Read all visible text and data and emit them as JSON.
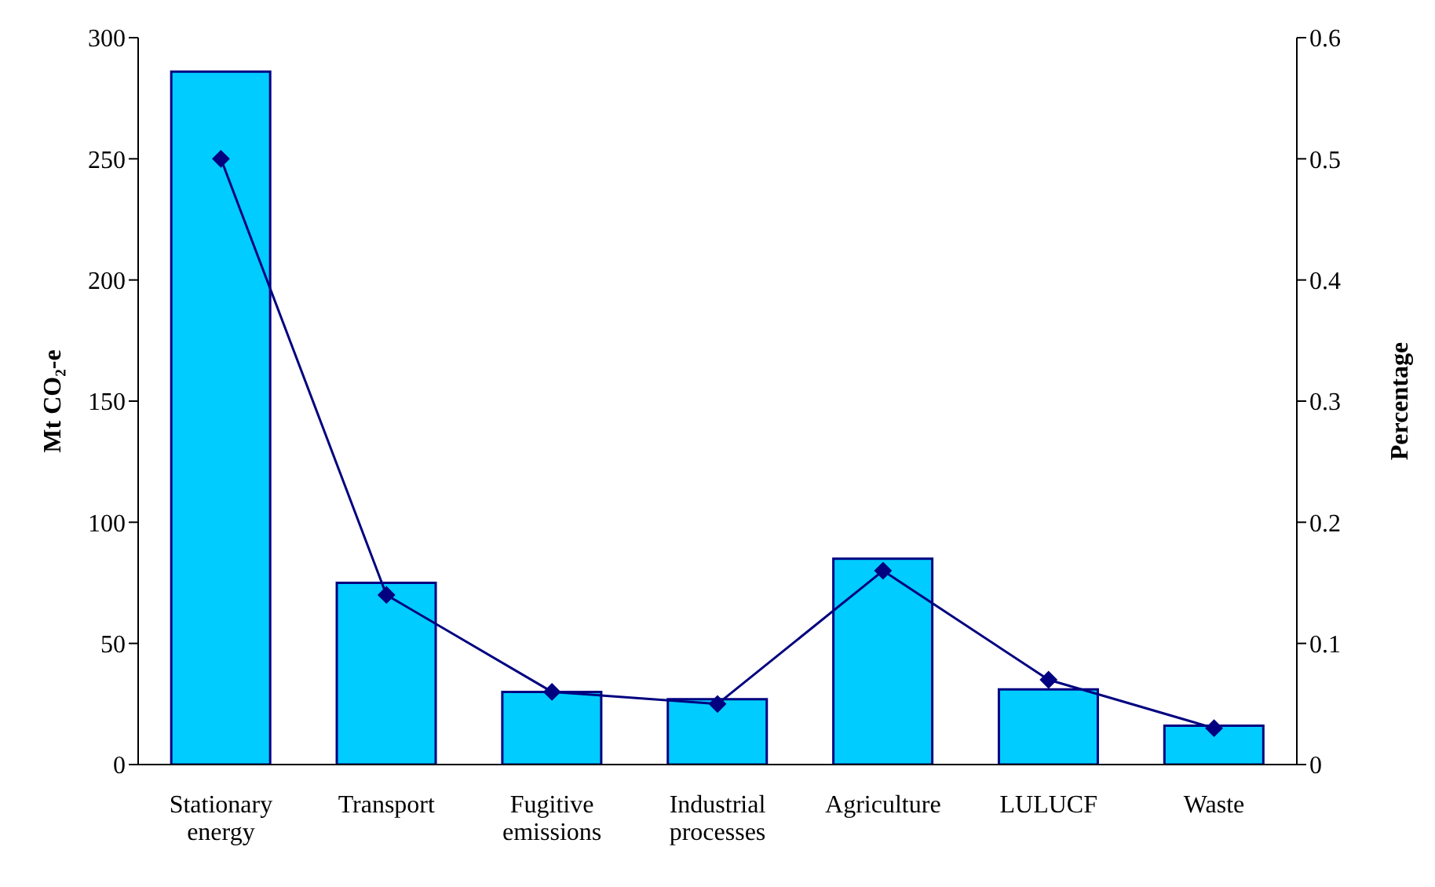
{
  "chart_data": {
    "type": "bar",
    "ylabel": "Mt CO₂-e",
    "y2label": "Percentage",
    "categories": [
      "Stationary energy",
      "Transport",
      "Fugitive emissions",
      "Industrial processes",
      "Agriculture",
      "LULUCF",
      "Waste"
    ],
    "series": [
      {
        "color": "#00ccff",
        "values": [
          286,
          75,
          30,
          27,
          85,
          31,
          16
        ]
      },
      {
        "type": "line",
        "axis": "y2",
        "color": "#000080",
        "marker": "diamond",
        "values": [
          0.5,
          0.14,
          0.06,
          0.05,
          0.16,
          0.07,
          0.03
        ]
      }
    ],
    "ylim": [
      0,
      300
    ],
    "yticks": [
      0,
      50,
      100,
      150,
      200,
      250,
      300
    ],
    "y2lim": [
      0,
      0.6
    ],
    "y2ticks": [
      0,
      0.1,
      0.2,
      0.3,
      0.4,
      0.5,
      0.6
    ],
    "grid": false,
    "legend": false
  }
}
